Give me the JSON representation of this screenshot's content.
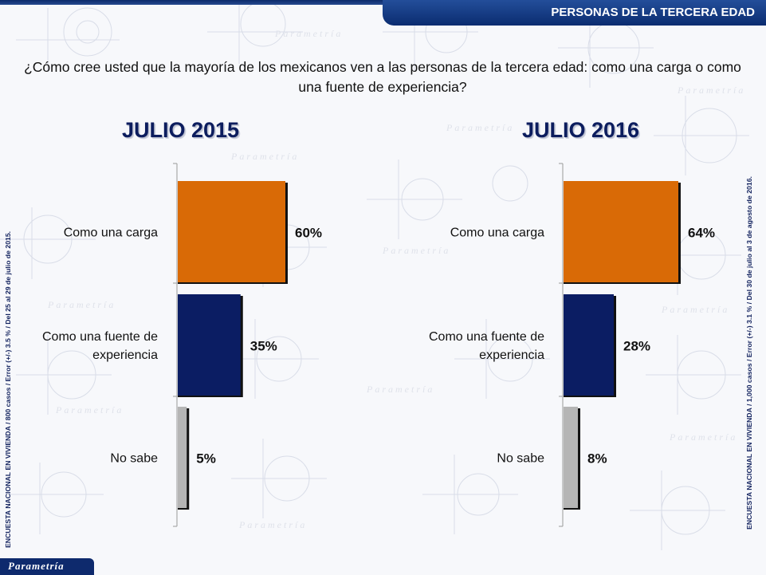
{
  "header": {
    "title": "PERSONAS DE LA TERCERA EDAD"
  },
  "question": "¿Cómo cree usted que la mayoría de los mexicanos ven a las personas de la tercera edad: como una carga o como una fuente de experiencia?",
  "left_note": "ENCUESTA NACIONAL EN VIVIENDA / 800 casos / Error (+/-) 3.5 % / Del 25 al 29 de julio de 2015.",
  "right_note": "ENCUESTA NACIONAL EN VIVIENDA / 1,000 casos / Error (+/-) 3.1 % / Del 30 de julio al 3 de agosto de 2016.",
  "logo": "Parametría",
  "background_watermark": "Parametría",
  "colors": {
    "carga": "#d96a06",
    "experiencia": "#0b1d63",
    "nosabe": "#b5b5b5",
    "title": "#0c1d5e"
  },
  "chart_data": [
    {
      "type": "bar",
      "title": "JULIO 2015",
      "categories": [
        "Como una carga",
        "Como una fuente de experiencia",
        "No sabe"
      ],
      "values": [
        60,
        35,
        5
      ],
      "value_labels": [
        "60%",
        "35%",
        "5%"
      ],
      "xlim": [
        0,
        100
      ]
    },
    {
      "type": "bar",
      "title": "JULIO 2016",
      "categories": [
        "Como una carga",
        "Como una fuente de experiencia",
        "No sabe"
      ],
      "values": [
        64,
        28,
        8
      ],
      "value_labels": [
        "64%",
        "28%",
        "8%"
      ],
      "xlim": [
        0,
        100
      ]
    }
  ]
}
